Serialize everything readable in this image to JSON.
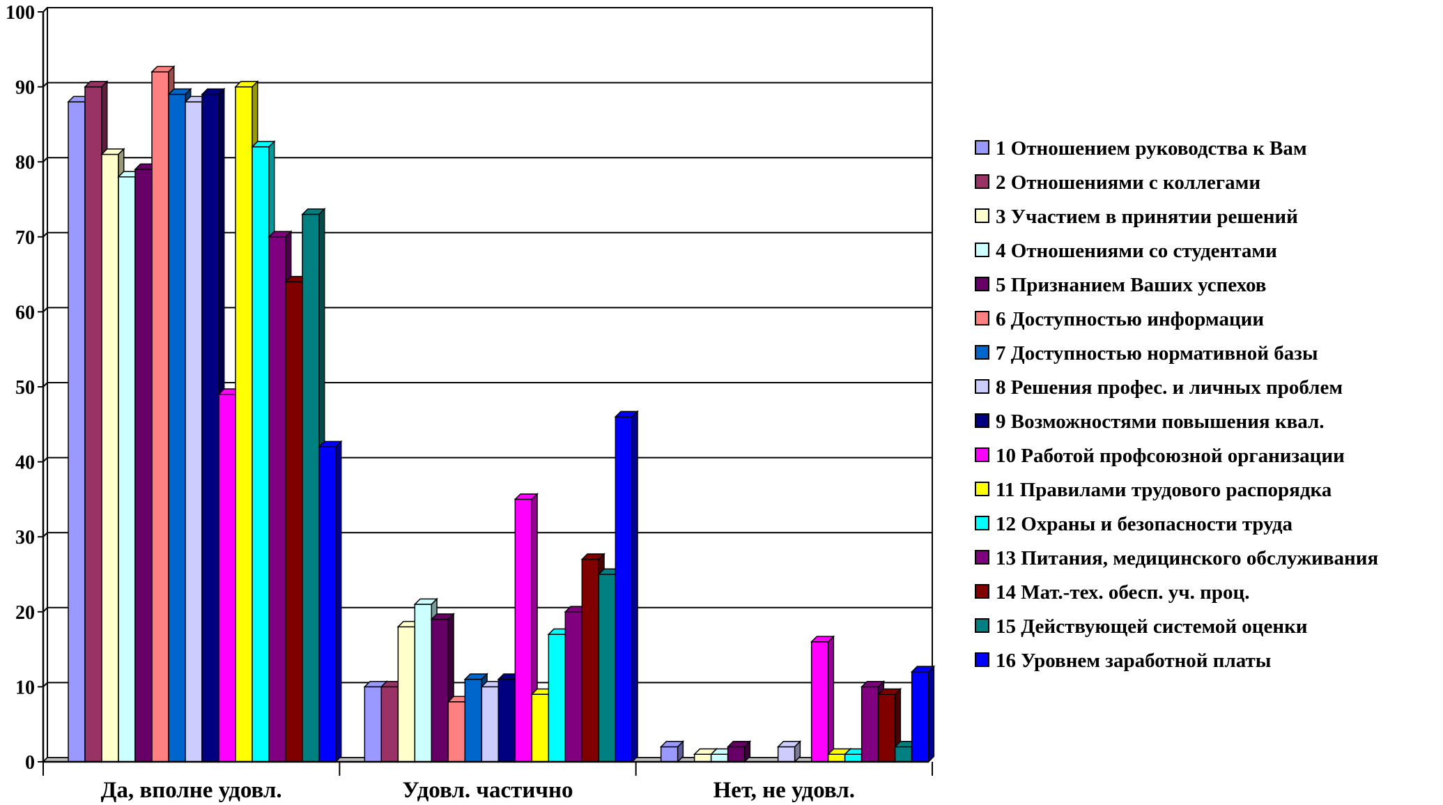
{
  "chart_data": {
    "type": "bar",
    "style": "3d-clustered-column",
    "title": "",
    "xlabel": "",
    "ylabel": "",
    "ylim": [
      0,
      100
    ],
    "yticks": [
      0,
      10,
      20,
      30,
      40,
      50,
      60,
      70,
      80,
      90,
      100
    ],
    "grid": true,
    "legend_position": "right",
    "categories": [
      "Да, вполне удовл.",
      "Удовл. частично",
      "Нет, не удовл."
    ],
    "series": [
      {
        "name": "1 Отношением руководства к Вам",
        "color": "#9999FF",
        "values": [
          88,
          10,
          2
        ]
      },
      {
        "name": "2 Отношениями с коллегами",
        "color": "#993366",
        "values": [
          90,
          10,
          0
        ]
      },
      {
        "name": "3 Участием в принятии решений",
        "color": "#FFFFCC",
        "values": [
          81,
          18,
          1
        ]
      },
      {
        "name": "4 Отношениями со студентами",
        "color": "#CCFFFF",
        "values": [
          78,
          21,
          1
        ]
      },
      {
        "name": "5 Признанием Ваших успехов",
        "color": "#660066",
        "values": [
          79,
          19,
          2
        ]
      },
      {
        "name": "6 Доступностью информации",
        "color": "#FF8080",
        "values": [
          92,
          8,
          0
        ]
      },
      {
        "name": "7 Доступностью нормативной базы",
        "color": "#0066CC",
        "values": [
          89,
          11,
          0
        ]
      },
      {
        "name": "8 Решения профес. и личных проблем",
        "color": "#CCCCFF",
        "values": [
          88,
          10,
          2
        ]
      },
      {
        "name": "9 Возможностями повышения квал.",
        "color": "#000080",
        "values": [
          89,
          11,
          0
        ]
      },
      {
        "name": "10 Работой профсоюзной организации",
        "color": "#FF00FF",
        "values": [
          49,
          35,
          16
        ]
      },
      {
        "name": " 11 Правилами трудового распорядка",
        "color": "#FFFF00",
        "values": [
          90,
          9,
          1
        ]
      },
      {
        "name": "12 Охраны и безопасности труда",
        "color": "#00FFFF",
        "values": [
          82,
          17,
          1
        ]
      },
      {
        "name": "13 Питания, медицинского обслуживания",
        "color": "#800080",
        "values": [
          70,
          20,
          10
        ]
      },
      {
        "name": "14 Мат.-тех. обесп. уч. проц.",
        "color": "#800000",
        "values": [
          64,
          27,
          9
        ]
      },
      {
        "name": "15 Действующей системой оценки",
        "color": "#008080",
        "values": [
          73,
          25,
          2
        ]
      },
      {
        "name": "16 Уровнем заработной платы",
        "color": "#0000FF",
        "values": [
          42,
          46,
          12
        ]
      }
    ]
  }
}
